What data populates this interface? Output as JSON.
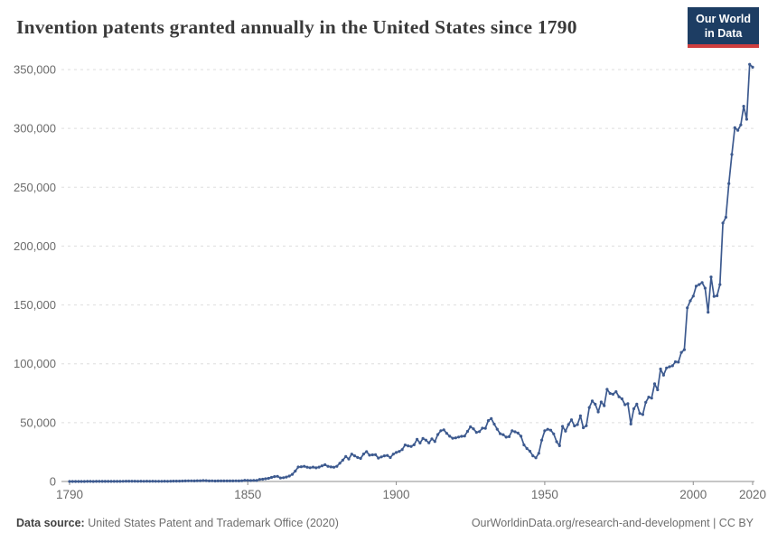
{
  "header": {
    "title": "Invention patents granted annually in the United States since 1790",
    "logo": {
      "line1": "Our World",
      "line2": "in Data",
      "bg_color": "#1d3d63",
      "stripe_color": "#cf3e3e"
    }
  },
  "footer": {
    "source_label": "Data source:",
    "source_value": "United States Patent and Trademark Office (2020)",
    "credit": "OurWorldinData.org/research-and-development | CC BY"
  },
  "chart_data": {
    "type": "line",
    "title": "Invention patents granted annually in the United States since 1790",
    "xlabel": "",
    "ylabel": "",
    "line_color": "#3d5a8f",
    "grid_color": "#dedede",
    "axis_color": "#8c8c8c",
    "tick_label_color": "#6b6b6b",
    "x_range": [
      1790,
      2020
    ],
    "ylim": [
      0,
      350000
    ],
    "grid": "dashed-horizontal",
    "legend_position": "none",
    "xticks": [
      1790,
      1850,
      1900,
      1950,
      2000,
      2020
    ],
    "yticks": [
      {
        "value": 0,
        "label": "0"
      },
      {
        "value": 50000,
        "label": "50,000"
      },
      {
        "value": 100000,
        "label": "100,000"
      },
      {
        "value": 150000,
        "label": "150,000"
      },
      {
        "value": 200000,
        "label": "200,000"
      },
      {
        "value": 250000,
        "label": "250,000"
      },
      {
        "value": 300000,
        "label": "300,000"
      },
      {
        "value": 350000,
        "label": "350,000"
      }
    ],
    "series": [
      {
        "name": "Invention patents granted",
        "x_start": 1790,
        "x_step": 1,
        "values": [
          3,
          33,
          11,
          20,
          22,
          12,
          44,
          51,
          28,
          44,
          41,
          44,
          65,
          97,
          84,
          57,
          63,
          99,
          158,
          203,
          223,
          215,
          238,
          181,
          210,
          173,
          206,
          174,
          222,
          156,
          155,
          168,
          200,
          173,
          228,
          304,
          323,
          331,
          368,
          447,
          544,
          573,
          474,
          586,
          630,
          752,
          702,
          426,
          514,
          404,
          458,
          490,
          488,
          493,
          478,
          473,
          566,
          495,
          583,
          984,
          883,
          752,
          885,
          844,
          1755,
          1881,
          2302,
          2674,
          3455,
          4160,
          4357,
          3020,
          3214,
          3773,
          4630,
          6088,
          8863,
          12277,
          12526,
          12931,
          12137,
          11659,
          12180,
          11616,
          12230,
          13291,
          14169,
          12920,
          12345,
          12165,
          12902,
          15500,
          18091,
          21162,
          19118,
          23285,
          21767,
          20403,
          19551,
          23324,
          25313,
          22312,
          22647,
          22750,
          19855,
          20856,
          21822,
          22067,
          20377,
          23278,
          24644,
          25546,
          27119,
          31029,
          30258,
          29775,
          31170,
          35859,
          32735,
          36561,
          35141,
          32856,
          36198,
          33917,
          39892,
          43118,
          43892,
          40935,
          38452,
          36797,
          37060,
          37798,
          38369,
          38616,
          42574,
          46432,
          44733,
          41717,
          42357,
          45267,
          45226,
          51756,
          53458,
          48774,
          44420,
          40618,
          39782,
          37683,
          38061,
          43073,
          42238,
          41109,
          38449,
          31054,
          28053,
          25695,
          21803,
          20139,
          23963,
          35131,
          43040,
          44326,
          43616,
          40468,
          33809,
          30432,
          46817,
          42744,
          48330,
          52408,
          47170,
          48368,
          55691,
          45679,
          47376,
          62857,
          68406,
          65652,
          59104,
          67559,
          64429,
          78317,
          74810,
          74143,
          76278,
          71994,
          70226,
          65269,
          66102,
          48854,
          61819,
          65771,
          57888,
          56860,
          67200,
          71661,
          70860,
          82952,
          77924,
          95537,
          90365,
          96511,
          97444,
          98342,
          101676,
          101419,
          109645,
          111984,
          147517,
          153485,
          157494,
          166035,
          167331,
          169023,
          164291,
          143806,
          173772,
          157282,
          157772,
          167349,
          219614,
          224505,
          253155,
          277835,
          300678,
          298407,
          303049,
          318829,
          307759,
          354430,
          351993
        ]
      }
    ]
  }
}
